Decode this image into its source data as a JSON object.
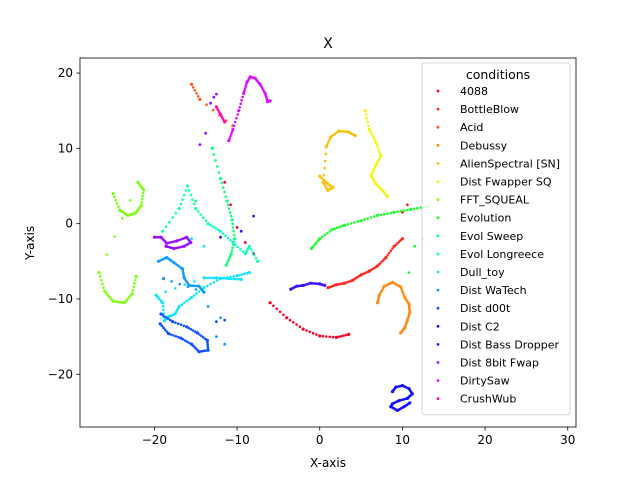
{
  "chart_data": {
    "type": "scatter",
    "title": "X",
    "xlabel": "X-axis",
    "ylabel": "Y-axis",
    "xlim": [
      -29,
      31
    ],
    "ylim": [
      -27,
      22
    ],
    "xticks": [
      -20,
      -10,
      0,
      10,
      20,
      30
    ],
    "yticks": [
      -20,
      -10,
      0,
      10,
      20
    ],
    "x_tick_labels": [
      "−20",
      "−10",
      "0",
      "10",
      "20",
      "30"
    ],
    "y_tick_labels": [
      "−20",
      "−10",
      "0",
      "10",
      "20"
    ],
    "grid": false,
    "legend_position": "top-right",
    "legend_title": "conditions",
    "series": [
      {
        "name": "4088",
        "color": "#ff0029",
        "x": [
          -6,
          -4,
          -2,
          0,
          2,
          3.5
        ],
        "y": [
          -10.5,
          -12.5,
          -14,
          -14.9,
          -15.1,
          -14.7
        ],
        "extra": [
          {
            "x": -11.5,
            "y": 5.5
          },
          {
            "x": -10.8,
            "y": 2.5
          },
          {
            "x": -10,
            "y": -0.5
          },
          {
            "x": -9,
            "y": -2.5
          },
          {
            "x": -8,
            "y": -4
          }
        ]
      },
      {
        "name": "BottleBlow",
        "color": "#ff2a1f",
        "x": [
          1,
          2,
          3,
          4,
          5,
          6,
          7,
          8,
          9,
          10
        ],
        "y": [
          -8.5,
          -8.1,
          -7.9,
          -7.5,
          -6.8,
          -6.3,
          -5.6,
          -4.5,
          -3,
          -2
        ],
        "extra": [
          {
            "x": 10,
            "y": 1.5
          },
          {
            "x": 10.6,
            "y": 2.5
          }
        ]
      },
      {
        "name": "Acid",
        "color": "#ff5a14",
        "x": [
          -15.5,
          -14.5,
          -10.5
        ],
        "y": [
          18.5,
          16.5,
          13
        ]
      },
      {
        "name": "Debussy",
        "color": "#ff8a10",
        "x": [
          7,
          7.2,
          7.8,
          8.8,
          9.8,
          10.3,
          10.8,
          10.9,
          10.6,
          10.3,
          9.8
        ],
        "y": [
          -10.5,
          -9.5,
          -8.3,
          -7.8,
          -8.4,
          -9.8,
          -10.7,
          -11.8,
          -12.8,
          -13.8,
          -14.5
        ]
      },
      {
        "name": "AlienSpectral [SN]",
        "color": "#ffc20c",
        "x": [
          0,
          1,
          1.6,
          1,
          0.4,
          0.8,
          1.3,
          2.3,
          3.4,
          4.3
        ],
        "y": [
          6.3,
          5.3,
          4.8,
          4.4,
          5.5,
          10.2,
          11.5,
          12.3,
          12.2,
          11.7
        ]
      },
      {
        "name": "Dist Fwapper SQ",
        "color": "#f5f50a",
        "x": [
          5.5,
          6,
          6.8,
          7.4,
          6.8,
          6.2,
          6.8,
          7.6,
          8.2
        ],
        "y": [
          15,
          12.5,
          10.8,
          9,
          7.8,
          6.4,
          5.3,
          4.4,
          3.6
        ]
      },
      {
        "name": "FFT_SQUEAL",
        "color": "#7aff10",
        "x": [
          -25,
          -24.2,
          -23.2,
          -22.3,
          -21.6,
          -21.3,
          -22,
          -26.7,
          -26,
          -25,
          -23.6,
          -22.7,
          -22.2
        ],
        "y": [
          4,
          1.8,
          1.1,
          1.4,
          2.4,
          4.5,
          5.5,
          -6.5,
          -9,
          -10.3,
          -10.5,
          -9.3,
          -7
        ]
      },
      {
        "name": "Evolution",
        "color": "#1aff2a",
        "x": [
          -1,
          0,
          1.5,
          3,
          5,
          7,
          9,
          11,
          13
        ],
        "y": [
          -3.3,
          -2,
          -0.8,
          -0.2,
          0.4,
          1.1,
          1.5,
          1.9,
          2.3
        ],
        "extra": [
          {
            "x": 11.5,
            "y": -3
          },
          {
            "x": 10.8,
            "y": -6.5
          },
          {
            "x": 12.5,
            "y": -2
          }
        ]
      },
      {
        "name": "Evol Sweep",
        "color": "#10ff7a",
        "x": [
          -13,
          -12,
          -11.2,
          -10.6,
          -10.3,
          -10.7,
          -11.3
        ],
        "y": [
          10,
          6,
          3,
          0.5,
          -2,
          -4,
          -5.5
        ],
        "extra": [
          {
            "x": -17,
            "y": 2
          },
          {
            "x": -15,
            "y": 3
          }
        ]
      },
      {
        "name": "Evol Longreece",
        "color": "#10ffbf",
        "x": [
          -19,
          -17,
          -16,
          -15,
          -13.5,
          -12,
          -10.5,
          -9,
          -8.5,
          -7.5
        ],
        "y": [
          -1,
          2,
          5,
          2,
          0,
          -1,
          -2.5,
          -4,
          -3,
          -5
        ]
      },
      {
        "name": "Dull_toy",
        "color": "#10e6ff",
        "x": [
          -8.5,
          -10,
          -12,
          -14,
          -15.5,
          -17,
          -17.5,
          -18.2,
          -18.8,
          -19,
          -19.8,
          -14,
          -12.5,
          -11,
          -9.5
        ],
        "y": [
          -6.5,
          -6.9,
          -7.3,
          -8.5,
          -9.8,
          -11,
          -12,
          -12.3,
          -12.9,
          -10.5,
          -9.5,
          -7.2,
          -7.2,
          -7.3,
          -7.4
        ],
        "extra": [
          {
            "x": -14,
            "y": -3
          },
          {
            "x": -15.5,
            "y": -2
          }
        ]
      },
      {
        "name": "Dist WaTech",
        "color": "#109bff",
        "x": [
          -19.5,
          -18.5,
          -17.6,
          -16.6,
          -16.4,
          -15.8,
          -14.6,
          -14,
          -18.9
        ],
        "y": [
          -5,
          -4.5,
          -5.2,
          -6,
          -7.2,
          -8.2,
          -8.3,
          -9.1,
          -7.3
        ],
        "extra": [
          {
            "x": -13.5,
            "y": -11
          },
          {
            "x": -12,
            "y": -12.5
          },
          {
            "x": -12.5,
            "y": -15
          },
          {
            "x": -11.5,
            "y": -16
          }
        ]
      },
      {
        "name": "Dist d00t",
        "color": "#1052ff",
        "x": [
          -19.2,
          -17.8,
          -16.1,
          -14.8,
          -13.6,
          -13.5,
          -14.6,
          -15.5,
          -16.8,
          -18.3,
          -19.3
        ],
        "y": [
          -12,
          -13,
          -13.7,
          -14.5,
          -15.5,
          -16.8,
          -17,
          -16,
          -15.2,
          -14.6,
          -13.3
        ],
        "extra": [
          {
            "x": -12.5,
            "y": -13
          },
          {
            "x": -11.5,
            "y": -12.8
          }
        ]
      },
      {
        "name": "Dist C2",
        "color": "#1010ff",
        "x": [
          8.8,
          9.2,
          10,
          10.8,
          11.2,
          10.6,
          9.6,
          8.8,
          8.6,
          9.4,
          10.2,
          10.9
        ],
        "y": [
          -22.3,
          -21.7,
          -21.5,
          -21.9,
          -22.6,
          -23.2,
          -23.5,
          -23.9,
          -24.3,
          -24.8,
          -24.3,
          -23.8
        ]
      },
      {
        "name": "Dist Bass Dropper",
        "color": "#3f10ff",
        "x": [
          -3.5,
          -2.8,
          -2,
          -1.1,
          0,
          0.6
        ],
        "y": [
          -8.7,
          -8.3,
          -8.2,
          -7.9,
          -8,
          -8.2
        ],
        "extra": [
          {
            "x": -12,
            "y": -1.8
          },
          {
            "x": -9.5,
            "y": -1
          },
          {
            "x": -8,
            "y": 1
          }
        ]
      },
      {
        "name": "Dist 8bit Fwap",
        "color": "#9710ff",
        "x": [
          -20,
          -19.2,
          -18.5,
          -17.3,
          -16.1,
          -15.6,
          -16.4,
          -17.6,
          -18.6
        ],
        "y": [
          -1.8,
          -1.8,
          -2.6,
          -2.3,
          -1.8,
          -2.5,
          -3,
          -3.3,
          -3
        ],
        "extra": [
          {
            "x": -13.2,
            "y": 16
          },
          {
            "x": -13.8,
            "y": 12
          },
          {
            "x": -14.5,
            "y": 10.5
          },
          {
            "x": -12.5,
            "y": 17.2
          },
          {
            "x": -12.8,
            "y": 16.8
          }
        ]
      },
      {
        "name": "DirtySaw",
        "color": "#db10ff",
        "x": [
          -11,
          -10.5,
          -9.8,
          -9.2,
          -8.8,
          -8.4,
          -7.8,
          -7.2,
          -6.6,
          -6.3,
          -6
        ],
        "y": [
          11,
          12.5,
          15,
          17.3,
          18.8,
          19.5,
          19.3,
          18.5,
          17.3,
          16.2,
          16.3
        ]
      },
      {
        "name": "CrushWub",
        "color": "#ff10b3",
        "x": [
          -12.5,
          -12,
          -11.5
        ],
        "y": [
          15.5,
          14.5,
          13.5
        ]
      }
    ]
  }
}
